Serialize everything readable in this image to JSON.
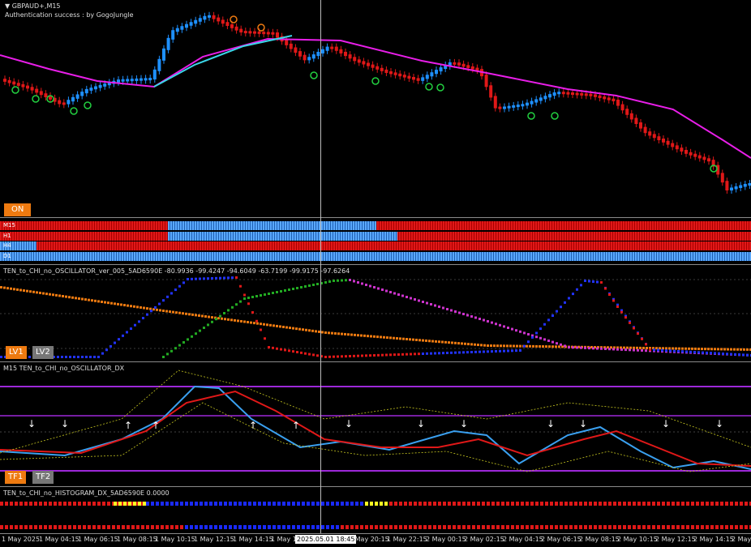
{
  "main_chart": {
    "symbol": "GBPAUD+,M15",
    "auth_text": "Authentication success : by GogoJungle",
    "on_button": "ON"
  },
  "timeframes": [
    "M15",
    "H1",
    "H4",
    "D1"
  ],
  "oscillator": {
    "title": "TEN_to_CHI_no_OSCILLATOR_ver_005_5AD6590E -80.9936 -99.4247 -94.6049 -63.7199 -99.9175 -97.6264",
    "lv1": "LV1",
    "lv2": "LV2"
  },
  "dx": {
    "title": "M15 TEN_to_CHI_no_OSCILLATOR_DX",
    "tf1": "TF1",
    "tf2": "TF2"
  },
  "histogram": {
    "title": "TEN_to_CHI_no_HISTOGRAM_DX_5AD6590E 0.0000"
  },
  "time_axis": {
    "ticks": [
      "1 May 2025",
      "1 May 04:15",
      "1 May 06:15",
      "1 May 08:15",
      "1 May 10:15",
      "1 May 12:15",
      "1 May 14:15",
      "1 May 16",
      "1 May 20:15",
      "1 May 22:15",
      "2 May 00:15",
      "2 May 02:15",
      "2 May 04:15",
      "2 May 06:15",
      "2 May 08:15",
      "2 May 10:15",
      "2 May 12:15",
      "2 May 14:15",
      "2 May"
    ],
    "cursor_label": "2025.05.01 18:45"
  },
  "colors": {
    "bull": "#1e90ff",
    "bear": "#e01818",
    "ma_slow": "#e81ee8",
    "ma_fast": "#3ad6e8",
    "accent_orange": "#ee7a10"
  }
}
